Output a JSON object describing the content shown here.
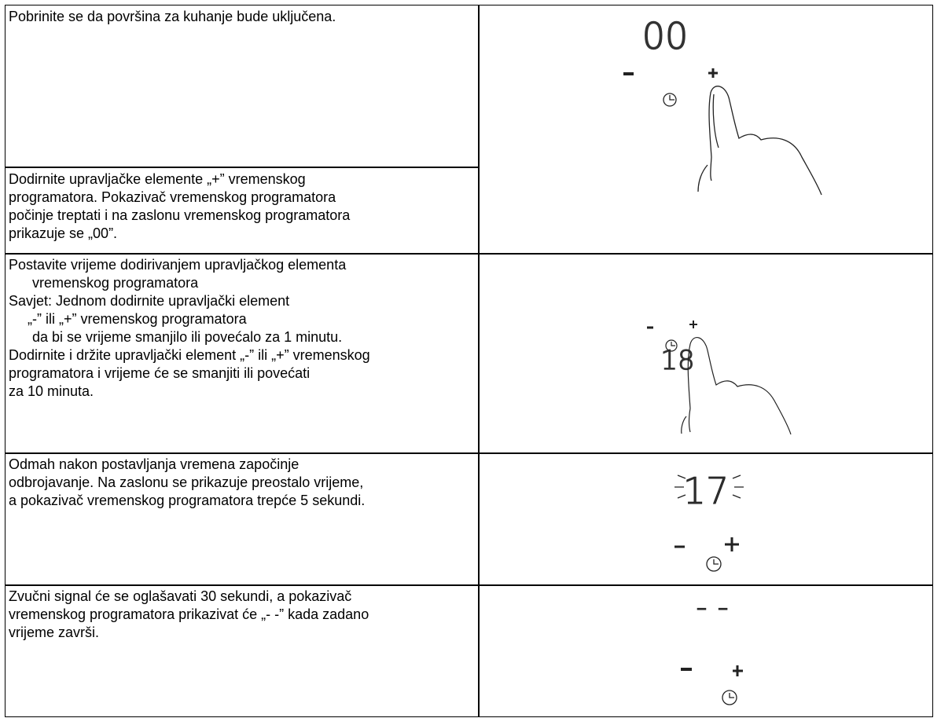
{
  "rows": [
    {
      "lines": [
        "Pobrinite se da površina za kuhanje bude uključena."
      ]
    },
    {
      "lines": [
        "Dodirnite upravljačke elemente „+” vremenskog",
        "programatora. Pokazivač vremenskog programatora",
        "počinje treptati i na zaslonu vremenskog programatora",
        "prikazuje se „00”."
      ]
    },
    {
      "lines": [
        "Postavite vrijeme dodirivanjem upravljačkog elementa",
        "vremenskog programatora",
        "Savjet: Jednom dodirnite upravljački element",
        "„-” ili „+” vremenskog programatora",
        "da bi se vrijeme smanjilo ili povećalo za 1 minutu.",
        "Dodirnite i držite upravljački element „-” ili „+” vremenskog",
        "programatora i vrijeme će se smanjiti ili povećati",
        "za 10 minuta."
      ]
    },
    {
      "lines": [
        "Odmah nakon postavljanja vremena započinje",
        "odbrojavanje. Na zaslonu se prikazuje preostalo vrijeme,",
        "a pokazivač vremenskog programatora trepće 5 sekundi."
      ]
    },
    {
      "lines": [
        "Zvučni signal će se oglašavati 30 sekundi, a pokazivač",
        "vremenskog programatora prikazivat će „- -” kada zadano",
        "vrijeme završi."
      ]
    }
  ],
  "displays": [
    "00",
    "18",
    "17",
    "- -"
  ]
}
